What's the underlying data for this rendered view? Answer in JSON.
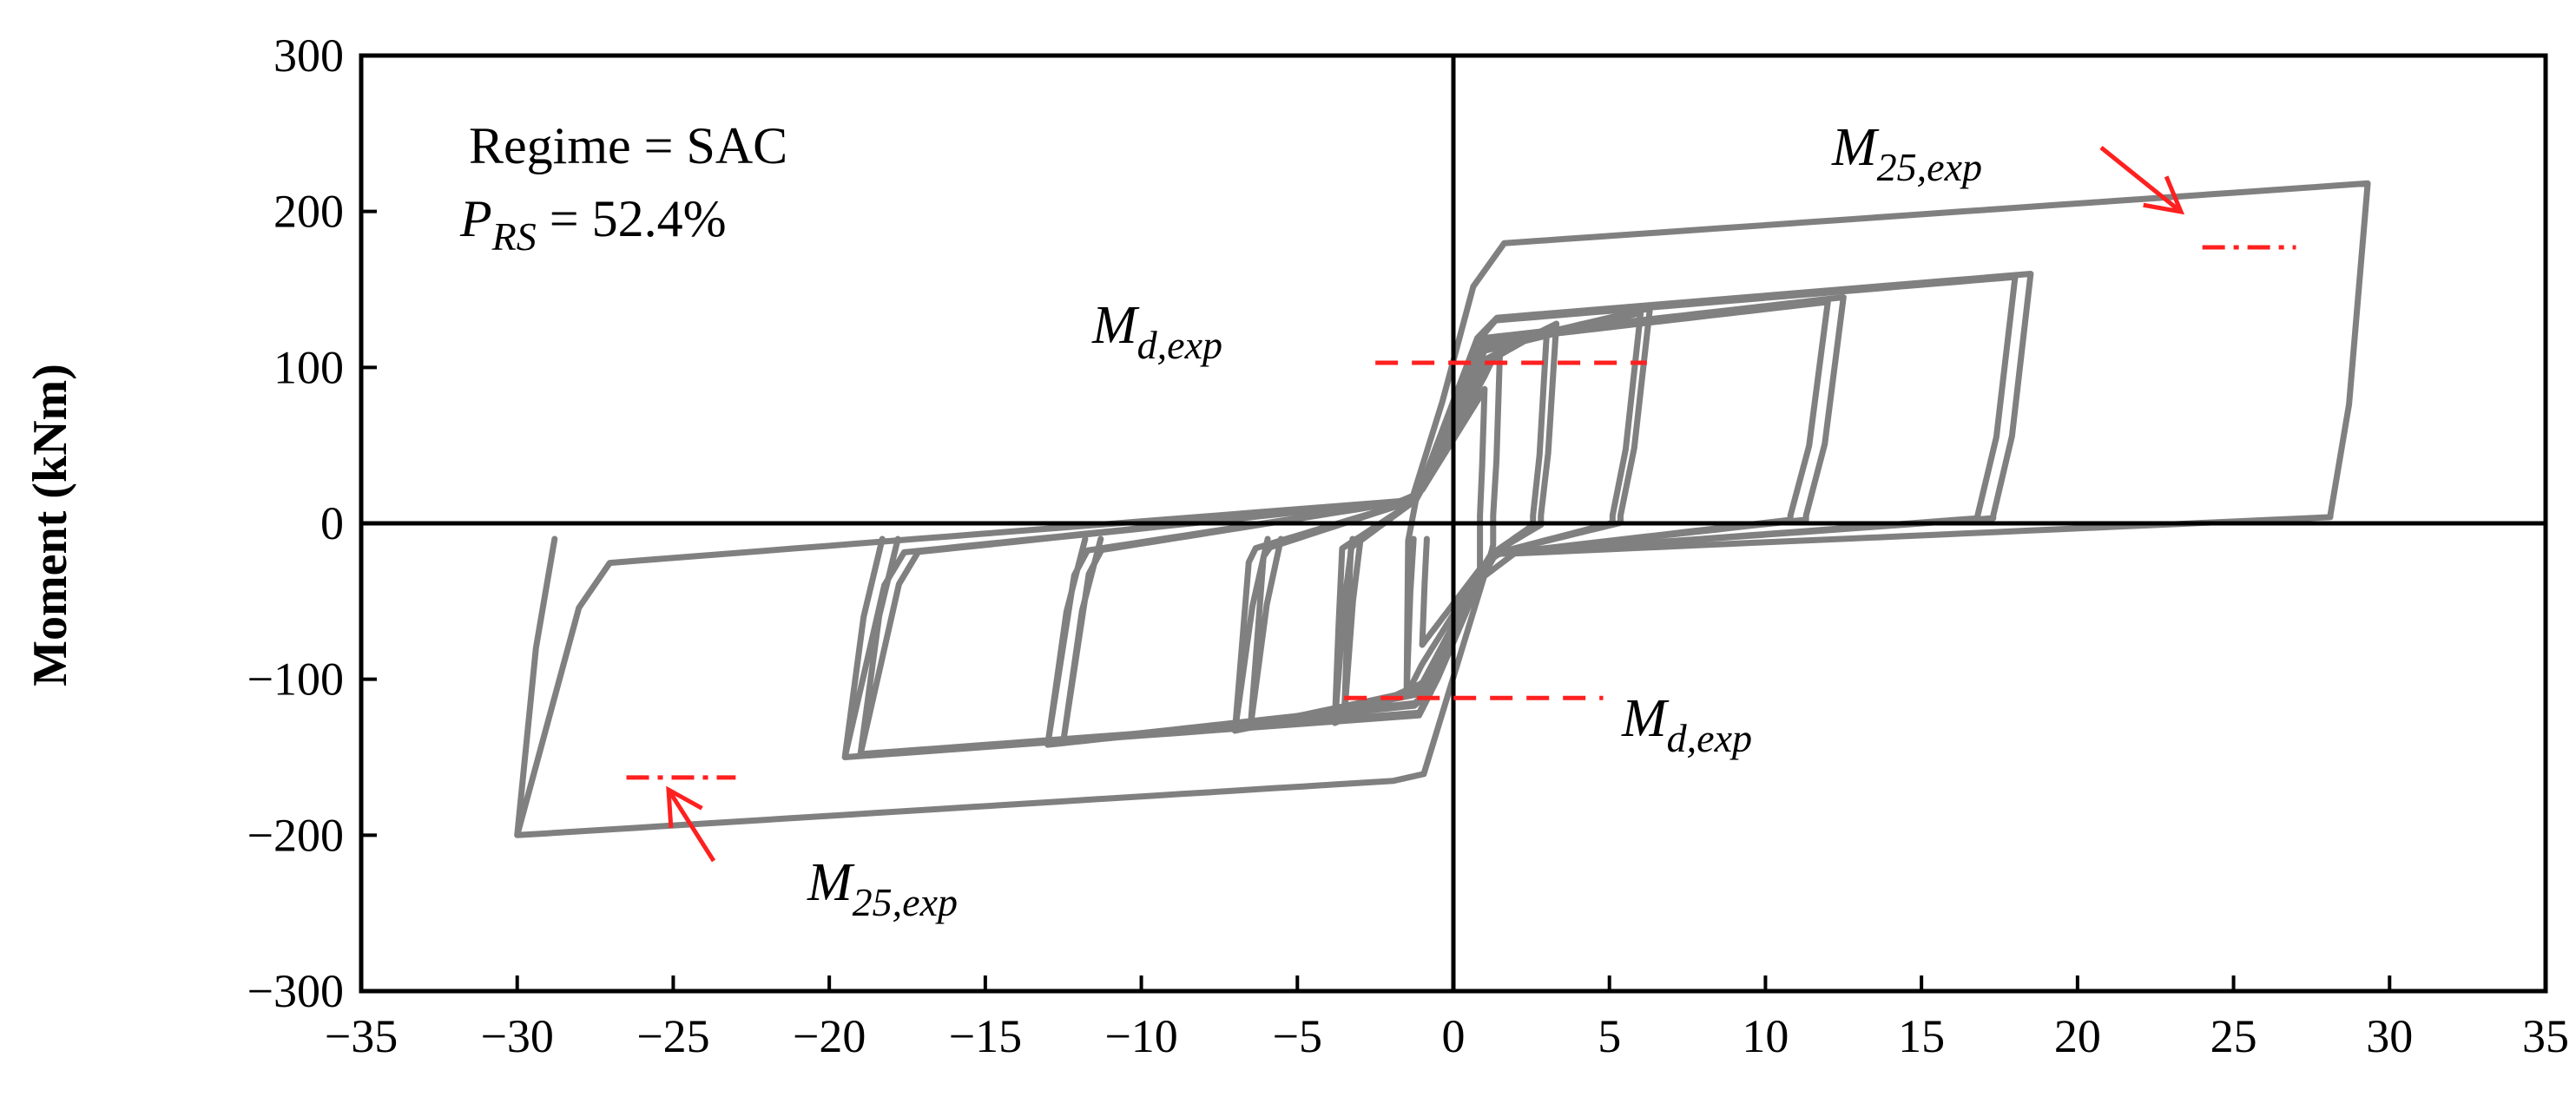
{
  "chart_data": {
    "type": "line",
    "title": "",
    "xlabel": "",
    "ylabel": "Moment (kNm)",
    "xlim": [
      -35,
      35
    ],
    "ylim": [
      -300,
      300
    ],
    "xticks": [
      -35,
      -30,
      -25,
      -20,
      -15,
      -10,
      -5,
      0,
      5,
      10,
      15,
      20,
      25,
      30,
      35
    ],
    "yticks": [
      -300,
      -200,
      -100,
      0,
      100,
      200,
      300
    ],
    "xtick_labels": [
      "−35",
      "−30",
      "−25",
      "−20",
      "−15",
      "−10",
      "−5",
      "0",
      "5",
      "10",
      "15",
      "20",
      "25",
      "30",
      "35"
    ],
    "ytick_labels": [
      "−300",
      "−200",
      "−100",
      "0",
      "100",
      "200",
      "300"
    ],
    "grid": false,
    "series_color": "#808080",
    "marker_color": "#ff2020",
    "annotations": {
      "regime_line": "Regime = SAC",
      "prs_symbol": "P",
      "prs_sub": "RS",
      "prs_value": " = 52.4%",
      "md_symbol": "M",
      "md_sub": "d,exp",
      "m25_symbol": "M",
      "m25_sub": "25,exp"
    },
    "reference_levels": {
      "Md_pos": 103,
      "Md_neg": -112,
      "M25_pos": 177,
      "M25_neg": -163
    },
    "loops": [
      {
        "amp_pos": 1.0,
        "peak_pos": 105,
        "amp_neg": -1.0,
        "peak_neg": -95
      },
      {
        "amp_pos": 1.5,
        "peak_pos": 115,
        "amp_neg": -1.5,
        "peak_neg": -110
      },
      {
        "amp_pos": 3.0,
        "peak_pos": 125,
        "amp_neg": -3.5,
        "peak_neg": -125
      },
      {
        "amp_pos": 3.3,
        "peak_pos": 128,
        "amp_neg": -3.8,
        "peak_neg": -128
      },
      {
        "amp_pos": 6.0,
        "peak_pos": 135,
        "amp_neg": -6.5,
        "peak_neg": -130
      },
      {
        "amp_pos": 6.3,
        "peak_pos": 138,
        "amp_neg": -7.0,
        "peak_neg": -133
      },
      {
        "amp_pos": 12.0,
        "peak_pos": 142,
        "amp_neg": -12.5,
        "peak_neg": -140
      },
      {
        "amp_pos": 12.5,
        "peak_pos": 145,
        "amp_neg": -13.0,
        "peak_neg": -142
      },
      {
        "amp_pos": 18.0,
        "peak_pos": 158,
        "amp_neg": -19.0,
        "peak_neg": -148
      },
      {
        "amp_pos": 18.5,
        "peak_pos": 160,
        "amp_neg": -19.5,
        "peak_neg": -150
      },
      {
        "amp_pos": 29.3,
        "peak_pos": 218,
        "amp_neg": -30.0,
        "peak_neg": -200
      }
    ]
  }
}
